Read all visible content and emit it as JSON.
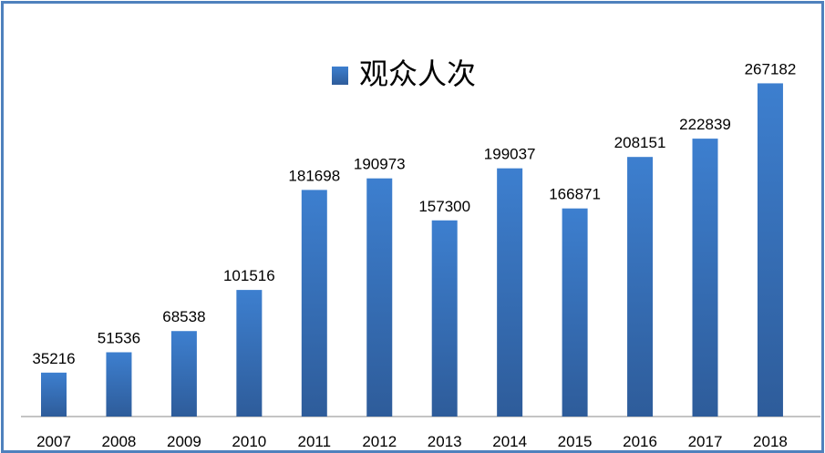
{
  "chart_data": {
    "type": "bar",
    "categories": [
      "2007",
      "2008",
      "2009",
      "2010",
      "2011",
      "2012",
      "2013",
      "2014",
      "2015",
      "2016",
      "2017",
      "2018"
    ],
    "series": [
      {
        "name": "观众人次",
        "values": [
          35216,
          51536,
          68538,
          101516,
          181698,
          190973,
          157300,
          199037,
          166871,
          208151,
          222839,
          267182
        ]
      }
    ],
    "data_labels": true,
    "legend": "top-center",
    "grid": false,
    "ylim": [
      0,
      334000
    ],
    "colors": {
      "bar_top": "#3d7fcf",
      "bar_bottom": "#2e5c9a",
      "frame": "#4f81bd",
      "axis": "#888888"
    }
  }
}
